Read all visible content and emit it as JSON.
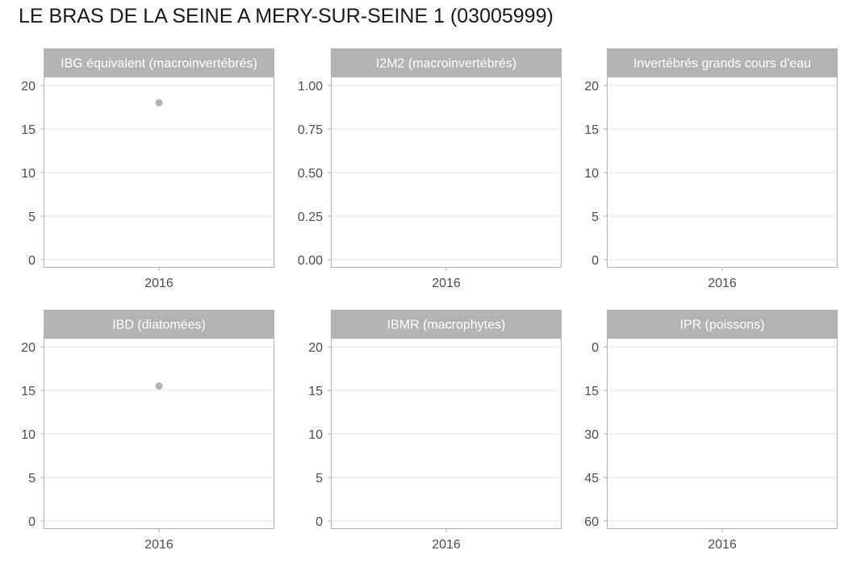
{
  "title": "LE BRAS DE LA SEINE A MERY-SUR-SEINE 1 (03005999)",
  "colors": {
    "strip": "#b3b3b3",
    "grid": "#e5e5e5",
    "border": "#b3b3b3",
    "point": "#b3b3b3",
    "text": "#4d4d4d"
  },
  "chart_data": [
    {
      "type": "scatter",
      "title": "IBG équivalent (macroinvertébrés)",
      "categories": [
        "2016"
      ],
      "y_ticks": [
        0,
        5,
        10,
        15,
        20
      ],
      "ylim": [
        0,
        20
      ],
      "reversed": false,
      "tick_decimals": 0,
      "points": [
        {
          "x": "2016",
          "y": 18
        }
      ]
    },
    {
      "type": "scatter",
      "title": "I2M2 (macroinvertébrés)",
      "categories": [
        "2016"
      ],
      "y_ticks": [
        0,
        0.25,
        0.5,
        0.75,
        1.0
      ],
      "ylim": [
        0,
        1
      ],
      "reversed": false,
      "tick_decimals": 2,
      "points": []
    },
    {
      "type": "scatter",
      "title": "Invertébrés grands cours d'eau",
      "categories": [
        "2016"
      ],
      "y_ticks": [
        0,
        5,
        10,
        15,
        20
      ],
      "ylim": [
        0,
        20
      ],
      "reversed": false,
      "tick_decimals": 0,
      "points": []
    },
    {
      "type": "scatter",
      "title": "IBD (diatomées)",
      "categories": [
        "2016"
      ],
      "y_ticks": [
        0,
        5,
        10,
        15,
        20
      ],
      "ylim": [
        0,
        20
      ],
      "reversed": false,
      "tick_decimals": 0,
      "points": [
        {
          "x": "2016",
          "y": 15.5
        }
      ]
    },
    {
      "type": "scatter",
      "title": "IBMR (macrophytes)",
      "categories": [
        "2016"
      ],
      "y_ticks": [
        0,
        5,
        10,
        15,
        20
      ],
      "ylim": [
        0,
        20
      ],
      "reversed": false,
      "tick_decimals": 0,
      "points": []
    },
    {
      "type": "scatter",
      "title": "IPR (poissons)",
      "categories": [
        "2016"
      ],
      "y_ticks": [
        0,
        15,
        30,
        45,
        60
      ],
      "ylim": [
        0,
        60
      ],
      "reversed": true,
      "tick_decimals": 0,
      "points": []
    }
  ]
}
